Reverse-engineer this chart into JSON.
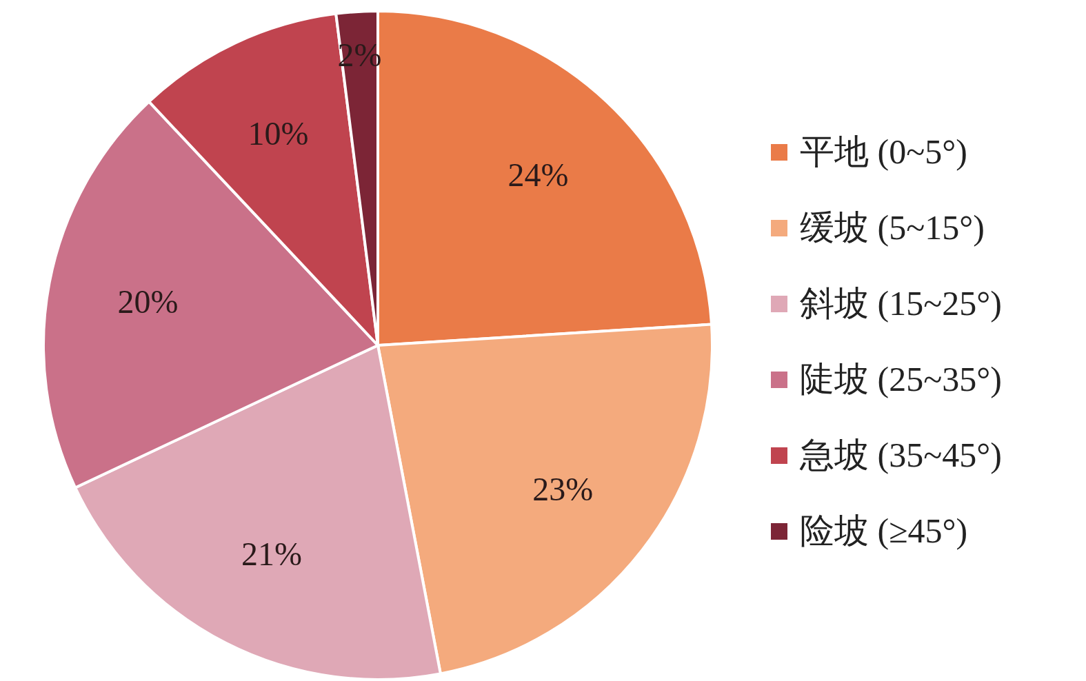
{
  "chart_data": {
    "type": "pie",
    "categories": [
      "平地 (0~5°)",
      "缓坡 (5~15°)",
      "斜坡 (15~25°)",
      "陡坡 (25~35°)",
      "急坡 (35~45°)",
      "险坡 (≥45°)"
    ],
    "values": [
      24,
      23,
      21,
      20,
      10,
      2
    ],
    "colors": [
      "#ea7b48",
      "#f4aa7d",
      "#dfa8b6",
      "#ca7189",
      "#c0444f",
      "#7c2536"
    ],
    "value_labels": [
      "24%",
      "23%",
      "21%",
      "20%",
      "10%",
      "2%"
    ],
    "legend": "right"
  }
}
